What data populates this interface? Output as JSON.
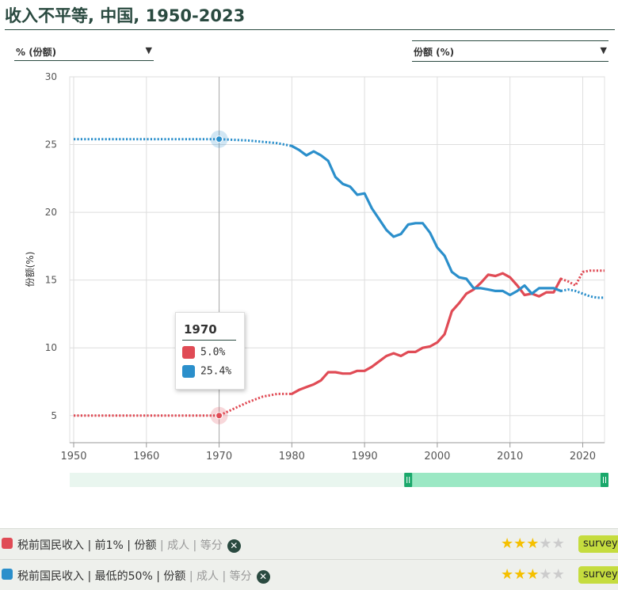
{
  "title": "收入不平等, 中国, 1950-2023",
  "selectors": {
    "left": "% (份额)",
    "right": "份额 (%)"
  },
  "tooltip": {
    "year": "1970",
    "rows": [
      {
        "value": "5.0%",
        "color": "#e04b55"
      },
      {
        "value": "25.4%",
        "color": "#2b8fcb"
      }
    ]
  },
  "legend": [
    {
      "color": "#e04b55",
      "parts": [
        "税前国民收入",
        "前1%",
        "份额"
      ],
      "muted": [
        "成人",
        "等分"
      ],
      "stars_on": 3,
      "stars_total": 5,
      "badge": "survey"
    },
    {
      "color": "#2b8fcb",
      "parts": [
        "税前国民收入",
        "最低的50%",
        "份额"
      ],
      "muted": [
        "成人",
        "等分"
      ],
      "stars_on": 3,
      "stars_total": 5,
      "badge": "survey"
    }
  ],
  "chart_data": {
    "type": "line",
    "ylabel": "份额(%)",
    "xlim": [
      1950,
      2023
    ],
    "ylim": [
      3,
      30
    ],
    "x_ticks": [
      1950,
      1960,
      1970,
      1980,
      1990,
      2000,
      2010,
      2020
    ],
    "y_ticks": [
      5,
      10,
      15,
      20,
      25,
      30
    ],
    "grid": true,
    "highlight_x": 1970,
    "series": [
      {
        "color": "#e04b55",
        "points": [
          [
            1950,
            5.0
          ],
          [
            1960,
            5.0
          ],
          [
            1970,
            5.0
          ],
          [
            1972,
            5.5
          ],
          [
            1974,
            6.0
          ],
          [
            1976,
            6.4
          ],
          [
            1978,
            6.6
          ],
          [
            1980,
            6.6
          ],
          [
            1981,
            6.9
          ],
          [
            1982,
            7.1
          ],
          [
            1983,
            7.3
          ],
          [
            1984,
            7.6
          ],
          [
            1985,
            8.2
          ],
          [
            1986,
            8.2
          ],
          [
            1987,
            8.1
          ],
          [
            1988,
            8.1
          ],
          [
            1989,
            8.3
          ],
          [
            1990,
            8.3
          ],
          [
            1991,
            8.6
          ],
          [
            1992,
            9.0
          ],
          [
            1993,
            9.4
          ],
          [
            1994,
            9.6
          ],
          [
            1995,
            9.4
          ],
          [
            1996,
            9.7
          ],
          [
            1997,
            9.7
          ],
          [
            1998,
            10.0
          ],
          [
            1999,
            10.1
          ],
          [
            2000,
            10.4
          ],
          [
            2001,
            11.0
          ],
          [
            2002,
            12.7
          ],
          [
            2003,
            13.3
          ],
          [
            2004,
            14.0
          ],
          [
            2005,
            14.3
          ],
          [
            2006,
            14.8
          ],
          [
            2007,
            15.4
          ],
          [
            2008,
            15.3
          ],
          [
            2009,
            15.5
          ],
          [
            2010,
            15.2
          ],
          [
            2011,
            14.6
          ],
          [
            2012,
            13.9
          ],
          [
            2013,
            14.0
          ],
          [
            2014,
            13.8
          ],
          [
            2015,
            14.1
          ],
          [
            2016,
            14.1
          ],
          [
            2017,
            15.1
          ],
          [
            2018,
            14.9
          ],
          [
            2019,
            14.6
          ],
          [
            2020,
            15.6
          ],
          [
            2021,
            15.7
          ],
          [
            2022,
            15.7
          ],
          [
            2023,
            15.7
          ]
        ],
        "dotted_ranges": [
          [
            1950,
            1980
          ],
          [
            2017,
            2023
          ]
        ]
      },
      {
        "color": "#2b8fcb",
        "points": [
          [
            1950,
            25.4
          ],
          [
            1960,
            25.4
          ],
          [
            1970,
            25.4
          ],
          [
            1974,
            25.3
          ],
          [
            1978,
            25.1
          ],
          [
            1980,
            24.9
          ],
          [
            1981,
            24.6
          ],
          [
            1982,
            24.2
          ],
          [
            1983,
            24.5
          ],
          [
            1984,
            24.2
          ],
          [
            1985,
            23.8
          ],
          [
            1986,
            22.6
          ],
          [
            1987,
            22.1
          ],
          [
            1988,
            21.9
          ],
          [
            1989,
            21.3
          ],
          [
            1990,
            21.4
          ],
          [
            1991,
            20.3
          ],
          [
            1992,
            19.5
          ],
          [
            1993,
            18.7
          ],
          [
            1994,
            18.2
          ],
          [
            1995,
            18.4
          ],
          [
            1996,
            19.1
          ],
          [
            1997,
            19.2
          ],
          [
            1998,
            19.2
          ],
          [
            1999,
            18.5
          ],
          [
            2000,
            17.4
          ],
          [
            2001,
            16.8
          ],
          [
            2002,
            15.6
          ],
          [
            2003,
            15.2
          ],
          [
            2004,
            15.1
          ],
          [
            2005,
            14.4
          ],
          [
            2006,
            14.4
          ],
          [
            2007,
            14.3
          ],
          [
            2008,
            14.2
          ],
          [
            2009,
            14.2
          ],
          [
            2010,
            13.9
          ],
          [
            2011,
            14.2
          ],
          [
            2012,
            14.6
          ],
          [
            2013,
            14.0
          ],
          [
            2014,
            14.4
          ],
          [
            2015,
            14.4
          ],
          [
            2016,
            14.4
          ],
          [
            2017,
            14.2
          ],
          [
            2018,
            14.3
          ],
          [
            2019,
            14.2
          ],
          [
            2020,
            14.0
          ],
          [
            2021,
            13.8
          ],
          [
            2022,
            13.7
          ],
          [
            2023,
            13.7
          ]
        ],
        "dotted_ranges": [
          [
            1950,
            1980
          ],
          [
            2017,
            2023
          ]
        ]
      }
    ],
    "slider": {
      "range_start": 1996,
      "range_end": 2023
    }
  }
}
